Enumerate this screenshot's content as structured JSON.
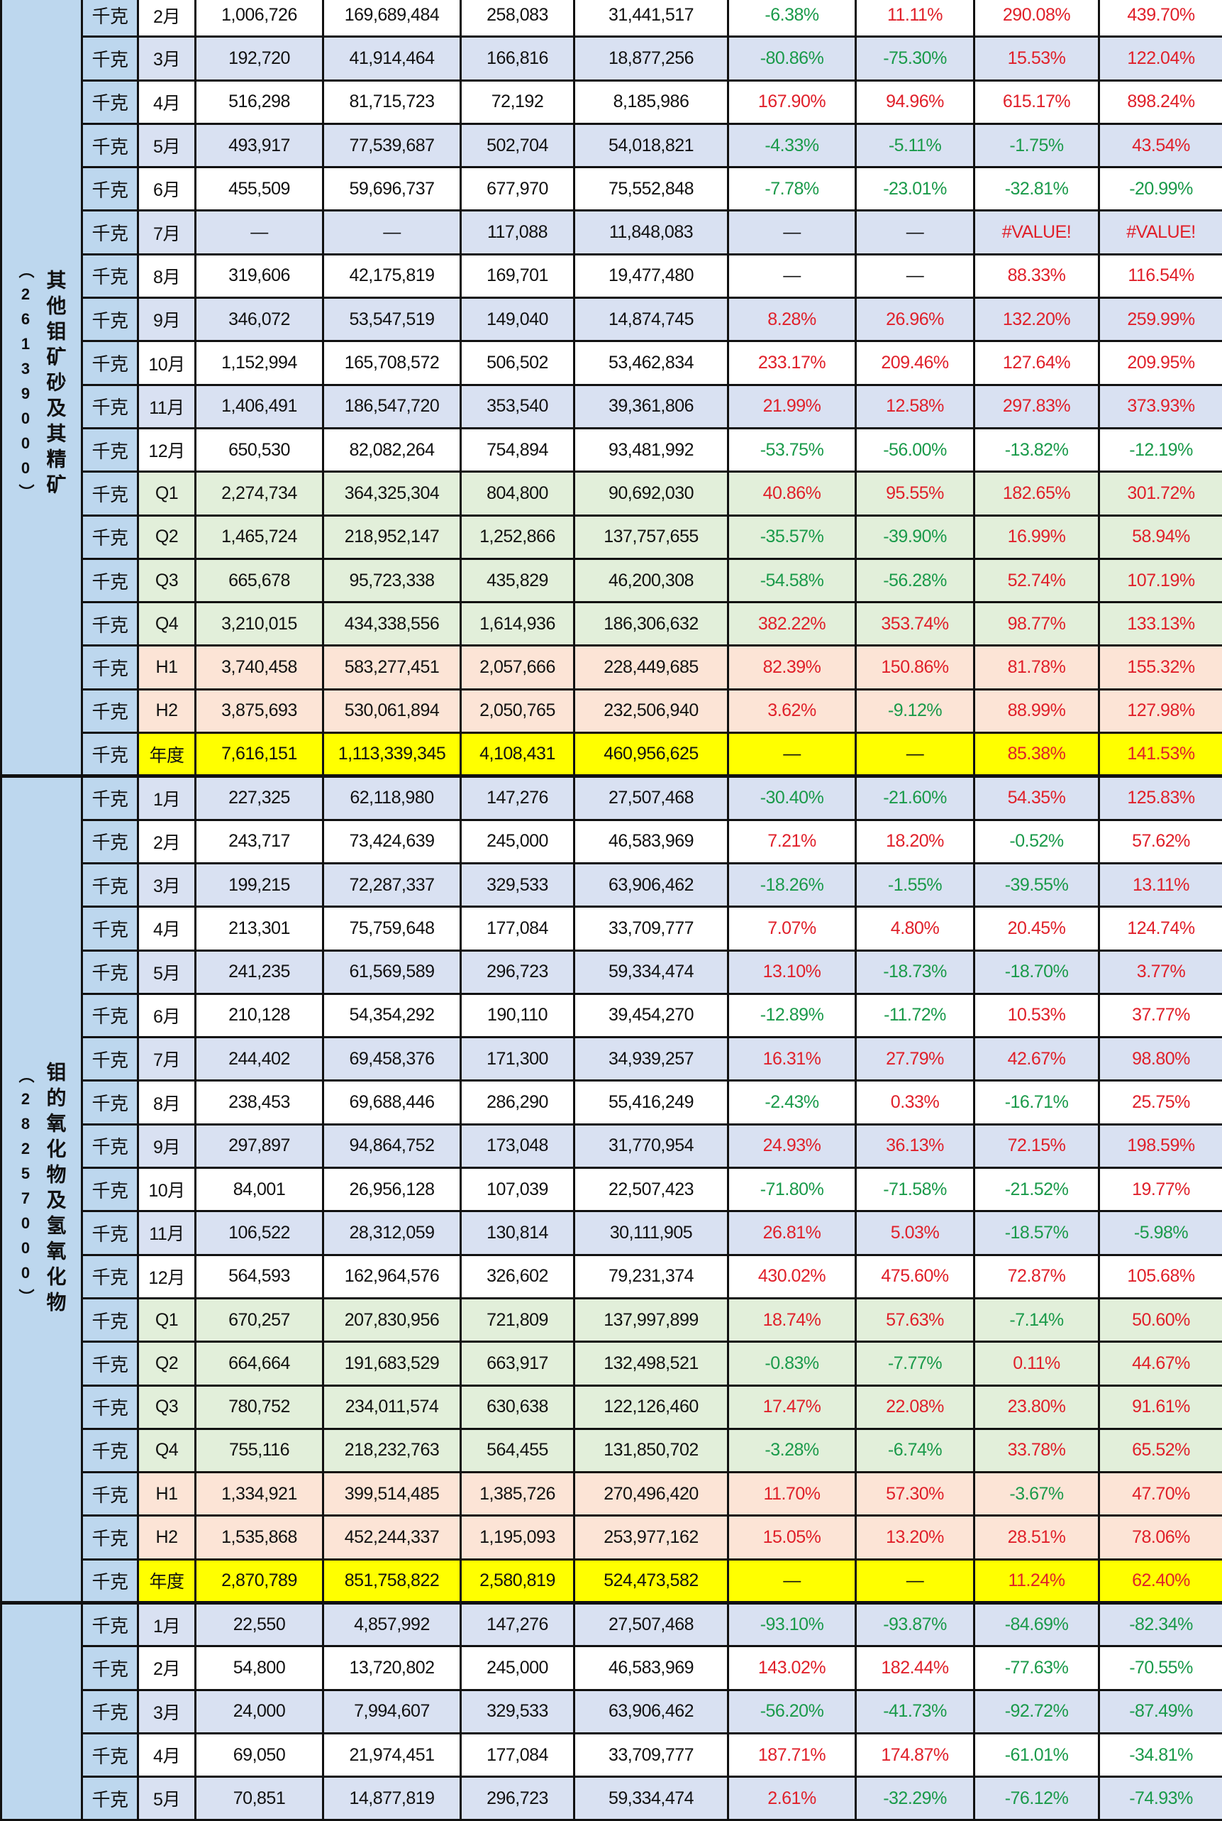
{
  "colors": {
    "positive": "#e0202a",
    "negative": "#1a9a4a",
    "month_alt": "#d9e1f2",
    "quarter": "#e2efda",
    "half": "#fce4d6",
    "annual": "#ffff00",
    "label": "#bdd7ee"
  },
  "sections": [
    {
      "code": "（26139000）",
      "name": "其他钼矿砂及其精矿",
      "rows": [
        {
          "unit": "千克",
          "period": "2月",
          "type": "m-white",
          "values": [
            "1,006,726",
            "169,689,484",
            "258,083",
            "31,441,517",
            "-6.38%",
            "11.11%",
            "290.08%",
            "439.70%"
          ]
        },
        {
          "unit": "千克",
          "period": "3月",
          "type": "m-blue",
          "values": [
            "192,720",
            "41,914,464",
            "166,816",
            "18,877,256",
            "-80.86%",
            "-75.30%",
            "15.53%",
            "122.04%"
          ]
        },
        {
          "unit": "千克",
          "period": "4月",
          "type": "m-white",
          "values": [
            "516,298",
            "81,715,723",
            "72,192",
            "8,185,986",
            "167.90%",
            "94.96%",
            "615.17%",
            "898.24%"
          ]
        },
        {
          "unit": "千克",
          "period": "5月",
          "type": "m-blue",
          "values": [
            "493,917",
            "77,539,687",
            "502,704",
            "54,018,821",
            "-4.33%",
            "-5.11%",
            "-1.75%",
            "43.54%"
          ]
        },
        {
          "unit": "千克",
          "period": "6月",
          "type": "m-white",
          "values": [
            "455,509",
            "59,696,737",
            "677,970",
            "75,552,848",
            "-7.78%",
            "-23.01%",
            "-32.81%",
            "-20.99%"
          ]
        },
        {
          "unit": "千克",
          "period": "7月",
          "type": "m-blue",
          "values": [
            "—",
            "—",
            "117,088",
            "11,848,083",
            "—",
            "—",
            "#VALUE!",
            "#VALUE!"
          ]
        },
        {
          "unit": "千克",
          "period": "8月",
          "type": "m-white",
          "values": [
            "319,606",
            "42,175,819",
            "169,701",
            "19,477,480",
            "—",
            "—",
            "88.33%",
            "116.54%"
          ]
        },
        {
          "unit": "千克",
          "period": "9月",
          "type": "m-blue",
          "values": [
            "346,072",
            "53,547,519",
            "149,040",
            "14,874,745",
            "8.28%",
            "26.96%",
            "132.20%",
            "259.99%"
          ]
        },
        {
          "unit": "千克",
          "period": "10月",
          "type": "m-white",
          "values": [
            "1,152,994",
            "165,708,572",
            "506,502",
            "53,462,834",
            "233.17%",
            "209.46%",
            "127.64%",
            "209.95%"
          ]
        },
        {
          "unit": "千克",
          "period": "11月",
          "type": "m-blue",
          "values": [
            "1,406,491",
            "186,547,720",
            "353,540",
            "39,361,806",
            "21.99%",
            "12.58%",
            "297.83%",
            "373.93%"
          ]
        },
        {
          "unit": "千克",
          "period": "12月",
          "type": "m-white",
          "values": [
            "650,530",
            "82,082,264",
            "754,894",
            "93,481,992",
            "-53.75%",
            "-56.00%",
            "-13.82%",
            "-12.19%"
          ]
        },
        {
          "unit": "千克",
          "period": "Q1",
          "type": "q",
          "values": [
            "2,274,734",
            "364,325,304",
            "804,800",
            "90,692,030",
            "40.86%",
            "95.55%",
            "182.65%",
            "301.72%"
          ]
        },
        {
          "unit": "千克",
          "period": "Q2",
          "type": "q",
          "values": [
            "1,465,724",
            "218,952,147",
            "1,252,866",
            "137,757,655",
            "-35.57%",
            "-39.90%",
            "16.99%",
            "58.94%"
          ]
        },
        {
          "unit": "千克",
          "period": "Q3",
          "type": "q",
          "values": [
            "665,678",
            "95,723,338",
            "435,829",
            "46,200,308",
            "-54.58%",
            "-56.28%",
            "52.74%",
            "107.19%"
          ]
        },
        {
          "unit": "千克",
          "period": "Q4",
          "type": "q",
          "values": [
            "3,210,015",
            "434,338,556",
            "1,614,936",
            "186,306,632",
            "382.22%",
            "353.74%",
            "98.77%",
            "133.13%"
          ]
        },
        {
          "unit": "千克",
          "period": "H1",
          "type": "h",
          "values": [
            "3,740,458",
            "583,277,451",
            "2,057,666",
            "228,449,685",
            "82.39%",
            "150.86%",
            "81.78%",
            "155.32%"
          ]
        },
        {
          "unit": "千克",
          "period": "H2",
          "type": "h",
          "values": [
            "3,875,693",
            "530,061,894",
            "2,050,765",
            "232,506,940",
            "3.62%",
            "-9.12%",
            "88.99%",
            "127.98%"
          ]
        },
        {
          "unit": "千克",
          "period": "年度",
          "type": "y",
          "values": [
            "7,616,151",
            "1,113,339,345",
            "4,108,431",
            "460,956,625",
            "—",
            "—",
            "85.38%",
            "141.53%"
          ]
        }
      ]
    },
    {
      "code": "（28257000）",
      "name": "钼的氧化物及氢氧化物",
      "rows": [
        {
          "unit": "千克",
          "period": "1月",
          "type": "m-blue",
          "values": [
            "227,325",
            "62,118,980",
            "147,276",
            "27,507,468",
            "-30.40%",
            "-21.60%",
            "54.35%",
            "125.83%"
          ]
        },
        {
          "unit": "千克",
          "period": "2月",
          "type": "m-white",
          "values": [
            "243,717",
            "73,424,639",
            "245,000",
            "46,583,969",
            "7.21%",
            "18.20%",
            "-0.52%",
            "57.62%"
          ]
        },
        {
          "unit": "千克",
          "period": "3月",
          "type": "m-blue",
          "values": [
            "199,215",
            "72,287,337",
            "329,533",
            "63,906,462",
            "-18.26%",
            "-1.55%",
            "-39.55%",
            "13.11%"
          ]
        },
        {
          "unit": "千克",
          "period": "4月",
          "type": "m-white",
          "values": [
            "213,301",
            "75,759,648",
            "177,084",
            "33,709,777",
            "7.07%",
            "4.80%",
            "20.45%",
            "124.74%"
          ]
        },
        {
          "unit": "千克",
          "period": "5月",
          "type": "m-blue",
          "values": [
            "241,235",
            "61,569,589",
            "296,723",
            "59,334,474",
            "13.10%",
            "-18.73%",
            "-18.70%",
            "3.77%"
          ]
        },
        {
          "unit": "千克",
          "period": "6月",
          "type": "m-white",
          "values": [
            "210,128",
            "54,354,292",
            "190,110",
            "39,454,270",
            "-12.89%",
            "-11.72%",
            "10.53%",
            "37.77%"
          ]
        },
        {
          "unit": "千克",
          "period": "7月",
          "type": "m-blue",
          "values": [
            "244,402",
            "69,458,376",
            "171,300",
            "34,939,257",
            "16.31%",
            "27.79%",
            "42.67%",
            "98.80%"
          ]
        },
        {
          "unit": "千克",
          "period": "8月",
          "type": "m-white",
          "values": [
            "238,453",
            "69,688,446",
            "286,290",
            "55,416,249",
            "-2.43%",
            "0.33%",
            "-16.71%",
            "25.75%"
          ]
        },
        {
          "unit": "千克",
          "period": "9月",
          "type": "m-blue",
          "values": [
            "297,897",
            "94,864,752",
            "173,048",
            "31,770,954",
            "24.93%",
            "36.13%",
            "72.15%",
            "198.59%"
          ]
        },
        {
          "unit": "千克",
          "period": "10月",
          "type": "m-white",
          "values": [
            "84,001",
            "26,956,128",
            "107,039",
            "22,507,423",
            "-71.80%",
            "-71.58%",
            "-21.52%",
            "19.77%"
          ]
        },
        {
          "unit": "千克",
          "period": "11月",
          "type": "m-blue",
          "values": [
            "106,522",
            "28,312,059",
            "130,814",
            "30,111,905",
            "26.81%",
            "5.03%",
            "-18.57%",
            "-5.98%"
          ]
        },
        {
          "unit": "千克",
          "period": "12月",
          "type": "m-white",
          "values": [
            "564,593",
            "162,964,576",
            "326,602",
            "79,231,374",
            "430.02%",
            "475.60%",
            "72.87%",
            "105.68%"
          ]
        },
        {
          "unit": "千克",
          "period": "Q1",
          "type": "q",
          "values": [
            "670,257",
            "207,830,956",
            "721,809",
            "137,997,899",
            "18.74%",
            "57.63%",
            "-7.14%",
            "50.60%"
          ]
        },
        {
          "unit": "千克",
          "period": "Q2",
          "type": "q",
          "values": [
            "664,664",
            "191,683,529",
            "663,917",
            "132,498,521",
            "-0.83%",
            "-7.77%",
            "0.11%",
            "44.67%"
          ]
        },
        {
          "unit": "千克",
          "period": "Q3",
          "type": "q",
          "values": [
            "780,752",
            "234,011,574",
            "630,638",
            "122,126,460",
            "17.47%",
            "22.08%",
            "23.80%",
            "91.61%"
          ]
        },
        {
          "unit": "千克",
          "period": "Q4",
          "type": "q",
          "values": [
            "755,116",
            "218,232,763",
            "564,455",
            "131,850,702",
            "-3.28%",
            "-6.74%",
            "33.78%",
            "65.52%"
          ]
        },
        {
          "unit": "千克",
          "period": "H1",
          "type": "h",
          "values": [
            "1,334,921",
            "399,514,485",
            "1,385,726",
            "270,496,420",
            "11.70%",
            "57.30%",
            "-3.67%",
            "47.70%"
          ]
        },
        {
          "unit": "千克",
          "period": "H2",
          "type": "h",
          "values": [
            "1,535,868",
            "452,244,337",
            "1,195,093",
            "253,977,162",
            "15.05%",
            "13.20%",
            "28.51%",
            "78.06%"
          ]
        },
        {
          "unit": "千克",
          "period": "年度",
          "type": "y",
          "values": [
            "2,870,789",
            "851,758,822",
            "2,580,819",
            "524,473,582",
            "—",
            "—",
            "11.24%",
            "62.40%"
          ]
        }
      ]
    },
    {
      "code": "",
      "name": "",
      "rows": [
        {
          "unit": "千克",
          "period": "1月",
          "type": "m-blue",
          "values": [
            "22,550",
            "4,857,992",
            "147,276",
            "27,507,468",
            "-93.10%",
            "-93.87%",
            "-84.69%",
            "-82.34%"
          ]
        },
        {
          "unit": "千克",
          "period": "2月",
          "type": "m-white",
          "values": [
            "54,800",
            "13,720,802",
            "245,000",
            "46,583,969",
            "143.02%",
            "182.44%",
            "-77.63%",
            "-70.55%"
          ]
        },
        {
          "unit": "千克",
          "period": "3月",
          "type": "m-blue",
          "values": [
            "24,000",
            "7,994,607",
            "329,533",
            "63,906,462",
            "-56.20%",
            "-41.73%",
            "-92.72%",
            "-87.49%"
          ]
        },
        {
          "unit": "千克",
          "period": "4月",
          "type": "m-white",
          "values": [
            "69,050",
            "21,974,451",
            "177,084",
            "33,709,777",
            "187.71%",
            "174.87%",
            "-61.01%",
            "-34.81%"
          ]
        },
        {
          "unit": "千克",
          "period": "5月",
          "type": "m-blue",
          "values": [
            "70,851",
            "14,877,819",
            "296,723",
            "59,334,474",
            "2.61%",
            "-32.29%",
            "-76.12%",
            "-74.93%"
          ]
        }
      ]
    }
  ]
}
